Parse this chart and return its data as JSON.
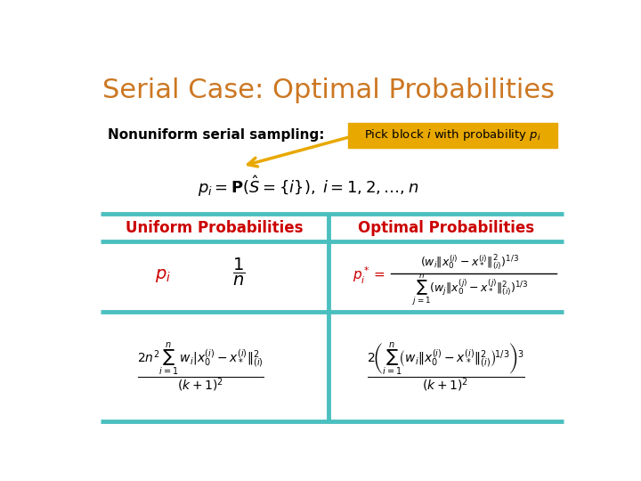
{
  "title": "Serial Case: Optimal Probabilities",
  "title_color": "#CC7722",
  "title_fontsize": 22,
  "bg_color": "#FFFFFF",
  "subtitle": "Nonuniform serial sampling:",
  "subtitle_fontsize": 11,
  "box_text": "Pick block $i$ with probability $p_i$",
  "box_color": "#E8A800",
  "box_text_color": "#000000",
  "formula_main": "$p_i = \\mathbf{P}(\\hat{S} = \\{i\\}),\\; i = 1, 2, \\ldots, n$",
  "col1_header": "Uniform Probabilities",
  "col2_header": "Optimal Probabilities",
  "header_color": "#CC0000",
  "divider_color": "#4BBFBF",
  "divider_lw": 3.5,
  "col1_pi_color": "#CC0000",
  "col2_pi_color": "#CC0000",
  "col1_bottom_wi_color": "#0000CC"
}
